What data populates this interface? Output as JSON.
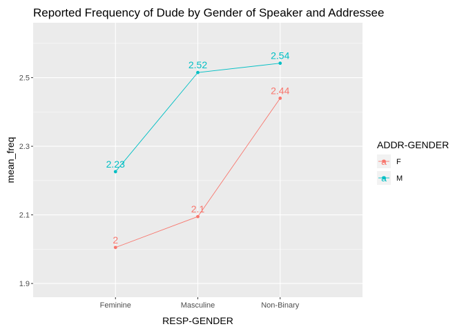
{
  "chart_data": {
    "type": "line",
    "title": "Reported Frequency of Dude by Gender of Speaker and Addressee",
    "xlabel": "RESP-GENDER",
    "ylabel": "mean_freq",
    "categories": [
      "Feminine",
      "Masculine",
      "Non-Binary"
    ],
    "ylim": [
      1.86,
      2.66
    ],
    "yticks": [
      1.9,
      2.1,
      2.3,
      2.5
    ],
    "ytick_labels": [
      "1.9",
      "2.1",
      "2.3",
      "2.5"
    ],
    "grid": true,
    "legend": {
      "title": "ADDR-GENDER",
      "position": "right",
      "key_glyph": "a"
    },
    "series": [
      {
        "name": "F",
        "color": "#F8766D",
        "values": [
          2.005,
          2.095,
          2.44
        ],
        "labels": [
          "2",
          "2.1",
          "2.44"
        ]
      },
      {
        "name": "M",
        "color": "#00BFC4",
        "values": [
          2.226,
          2.515,
          2.542
        ],
        "labels": [
          "2.23",
          "2.52",
          "2.54"
        ]
      }
    ]
  }
}
